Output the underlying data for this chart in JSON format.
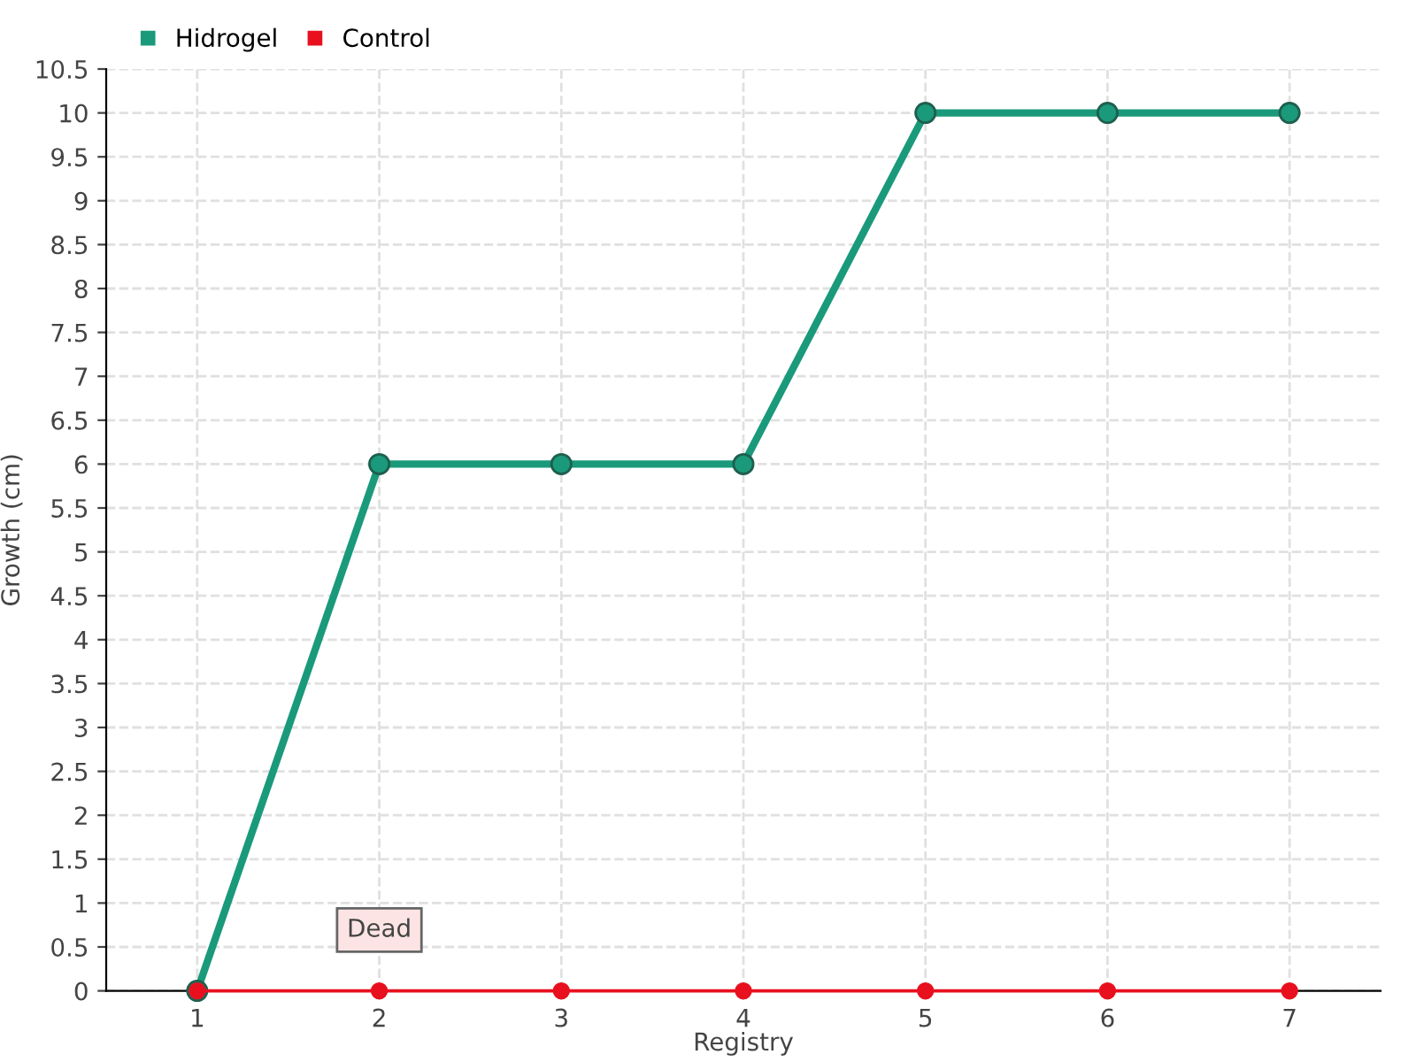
{
  "chart_data": {
    "type": "line",
    "xlabel": "Registry",
    "ylabel": "Growth (cm)",
    "categories": [
      "1",
      "2",
      "3",
      "4",
      "5",
      "6",
      "7"
    ],
    "series": [
      {
        "name": "Hidrogel",
        "color": "#1a9a7a",
        "values": [
          0,
          6,
          6,
          6,
          10,
          10,
          10
        ]
      },
      {
        "name": "Control",
        "color": "#e8101e",
        "values": [
          0,
          0,
          0,
          0,
          0,
          0,
          0
        ]
      }
    ],
    "ylim": [
      0,
      10.5
    ],
    "yticks": [
      0,
      0.5,
      1,
      1.5,
      2,
      2.5,
      3,
      3.5,
      4,
      4.5,
      5,
      5.5,
      6,
      6.5,
      7,
      7.5,
      8,
      8.5,
      9,
      9.5,
      10,
      10.5
    ],
    "grid": true,
    "legend": "top left",
    "marker": "circle",
    "line_style": "solid",
    "annotations": [
      {
        "text": "Dead",
        "x": "2",
        "y": 0
      }
    ]
  }
}
